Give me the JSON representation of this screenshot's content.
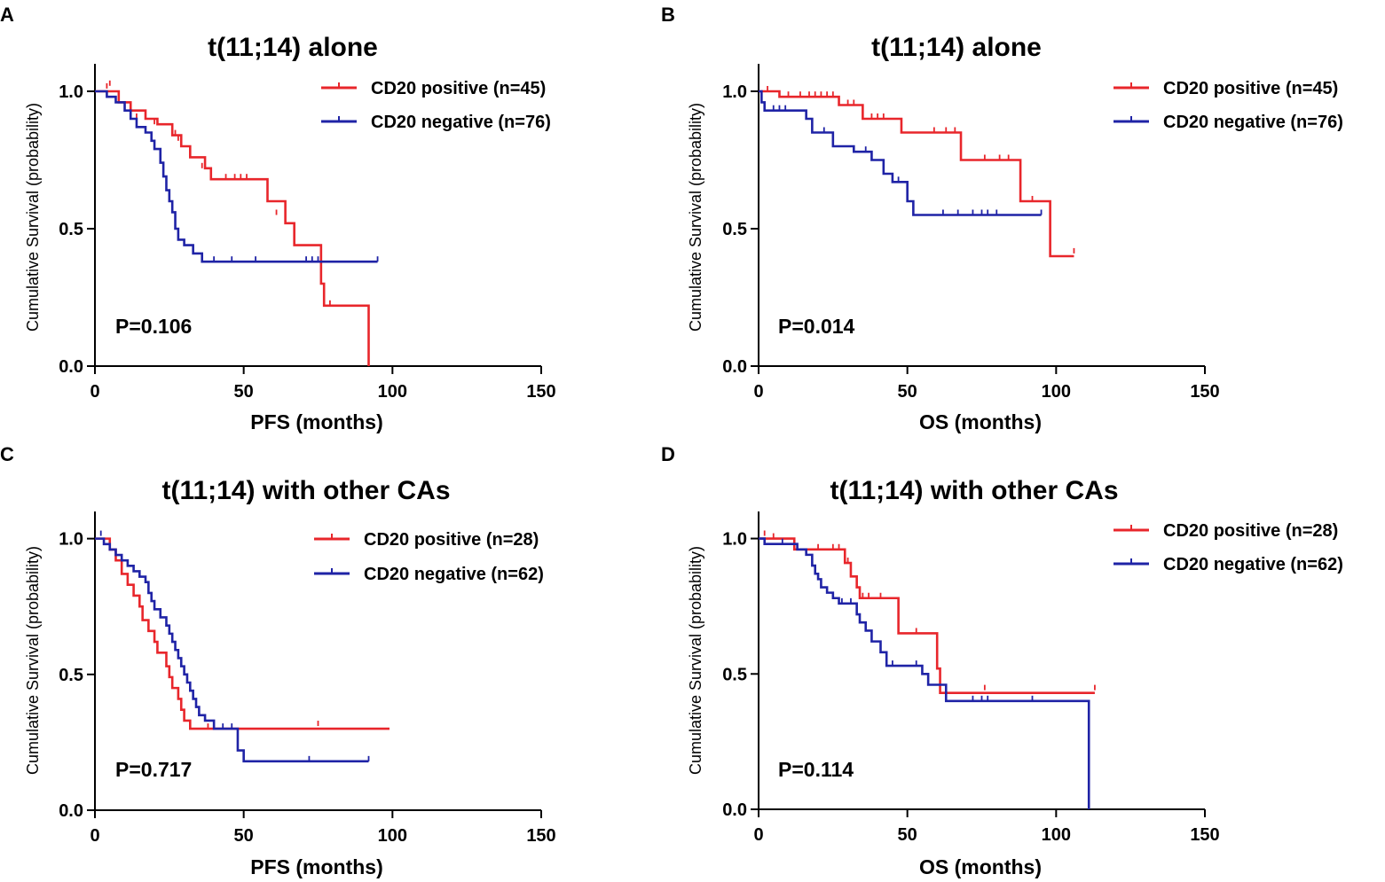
{
  "colors": {
    "positive": "#e8262b",
    "negative": "#1f23a6",
    "axis": "#000000"
  },
  "chart_data": [
    {
      "panel": "A",
      "type": "line",
      "subtype": "kaplan-meier",
      "title": "t(11;14) alone",
      "xlabel": "PFS (months)",
      "ylabel": "Cumulative Survival (probability)",
      "xlim": [
        0,
        150
      ],
      "ylim": [
        0,
        1.1
      ],
      "xticks": [
        "0",
        "50",
        "100",
        "150"
      ],
      "yticks": [
        "0.0",
        "0.5",
        "1.0"
      ],
      "p_value": "P=0.106",
      "legend_position": "top-right",
      "series": [
        {
          "name": "CD20 positive (n=45)",
          "color_key": "positive",
          "steps": [
            [
              0,
              1.0
            ],
            [
              8,
              0.96
            ],
            [
              12,
              0.93
            ],
            [
              17,
              0.9
            ],
            [
              21,
              0.88
            ],
            [
              26,
              0.84
            ],
            [
              29,
              0.8
            ],
            [
              32,
              0.76
            ],
            [
              37,
              0.72
            ],
            [
              39,
              0.68
            ],
            [
              58,
              0.6
            ],
            [
              64,
              0.52
            ],
            [
              67,
              0.44
            ],
            [
              76,
              0.3
            ],
            [
              77,
              0.22
            ],
            [
              92,
              0.0
            ]
          ],
          "end_x": 92,
          "censors": [
            [
              4,
              1.01
            ],
            [
              5,
              1.02
            ],
            [
              14,
              0.9
            ],
            [
              20,
              0.88
            ],
            [
              27,
              0.84
            ],
            [
              28,
              0.82
            ],
            [
              36,
              0.72
            ],
            [
              44,
              0.68
            ],
            [
              47,
              0.68
            ],
            [
              49,
              0.68
            ],
            [
              51,
              0.68
            ],
            [
              61,
              0.55
            ],
            [
              79,
              0.22
            ]
          ]
        },
        {
          "name": "CD20 negative (n=76)",
          "color_key": "negative",
          "steps": [
            [
              0,
              1.0
            ],
            [
              4,
              0.98
            ],
            [
              7,
              0.96
            ],
            [
              10,
              0.93
            ],
            [
              12,
              0.9
            ],
            [
              14,
              0.87
            ],
            [
              17,
              0.85
            ],
            [
              19,
              0.82
            ],
            [
              20,
              0.79
            ],
            [
              22,
              0.74
            ],
            [
              23,
              0.69
            ],
            [
              24,
              0.64
            ],
            [
              25,
              0.6
            ],
            [
              26,
              0.56
            ],
            [
              27,
              0.5
            ],
            [
              28,
              0.46
            ],
            [
              30,
              0.44
            ],
            [
              33,
              0.41
            ],
            [
              36,
              0.38
            ]
          ],
          "end_x": 95,
          "censors": [
            [
              40,
              0.38
            ],
            [
              46,
              0.38
            ],
            [
              54,
              0.38
            ],
            [
              71,
              0.38
            ],
            [
              73,
              0.38
            ],
            [
              75,
              0.38
            ],
            [
              95,
              0.38
            ]
          ]
        }
      ]
    },
    {
      "panel": "B",
      "type": "line",
      "subtype": "kaplan-meier",
      "title": "t(11;14) alone",
      "xlabel": "OS (months)",
      "ylabel": "Cumulative Survival (probability)",
      "xlim": [
        0,
        150
      ],
      "ylim": [
        0,
        1.1
      ],
      "xticks": [
        "0",
        "50",
        "100",
        "150"
      ],
      "yticks": [
        "0.0",
        "0.5",
        "1.0"
      ],
      "p_value": "P=0.014",
      "legend_position": "top-right",
      "series": [
        {
          "name": "CD20 positive (n=45)",
          "color_key": "positive",
          "steps": [
            [
              0,
              1.0
            ],
            [
              7,
              0.98
            ],
            [
              27,
              0.95
            ],
            [
              35,
              0.9
            ],
            [
              48,
              0.85
            ],
            [
              68,
              0.75
            ],
            [
              88,
              0.6
            ],
            [
              98,
              0.4
            ]
          ],
          "end_x": 106,
          "censors": [
            [
              3,
              1.0
            ],
            [
              10,
              0.98
            ],
            [
              14,
              0.98
            ],
            [
              17,
              0.98
            ],
            [
              19,
              0.98
            ],
            [
              21,
              0.98
            ],
            [
              23,
              0.98
            ],
            [
              25,
              0.98
            ],
            [
              30,
              0.95
            ],
            [
              32,
              0.95
            ],
            [
              38,
              0.9
            ],
            [
              40,
              0.9
            ],
            [
              42,
              0.9
            ],
            [
              59,
              0.85
            ],
            [
              63,
              0.85
            ],
            [
              66,
              0.85
            ],
            [
              76,
              0.75
            ],
            [
              81,
              0.75
            ],
            [
              84,
              0.75
            ],
            [
              92,
              0.6
            ],
            [
              106,
              0.41
            ]
          ]
        },
        {
          "name": "CD20 negative (n=76)",
          "color_key": "negative",
          "steps": [
            [
              0,
              1.0
            ],
            [
              1,
              0.96
            ],
            [
              2,
              0.93
            ],
            [
              16,
              0.9
            ],
            [
              18,
              0.85
            ],
            [
              25,
              0.8
            ],
            [
              32,
              0.78
            ],
            [
              38,
              0.75
            ],
            [
              42,
              0.7
            ],
            [
              45,
              0.67
            ],
            [
              50,
              0.6
            ],
            [
              52,
              0.55
            ]
          ],
          "end_x": 95,
          "censors": [
            [
              5,
              0.93
            ],
            [
              7,
              0.93
            ],
            [
              9,
              0.93
            ],
            [
              22,
              0.85
            ],
            [
              36,
              0.78
            ],
            [
              47,
              0.67
            ],
            [
              62,
              0.55
            ],
            [
              67,
              0.55
            ],
            [
              72,
              0.55
            ],
            [
              75,
              0.55
            ],
            [
              77,
              0.55
            ],
            [
              80,
              0.55
            ],
            [
              95,
              0.55
            ]
          ]
        }
      ]
    },
    {
      "panel": "C",
      "type": "line",
      "subtype": "kaplan-meier",
      "title": "t(11;14) with other CAs",
      "xlabel": "PFS (months)",
      "ylabel": "Cumulative Survival (probability)",
      "xlim": [
        0,
        150
      ],
      "ylim": [
        0,
        1.1
      ],
      "xticks": [
        "0",
        "50",
        "100",
        "150"
      ],
      "yticks": [
        "0.0",
        "0.5",
        "1.0"
      ],
      "p_value": "P=0.717",
      "legend_position": "top-right",
      "series": [
        {
          "name": "CD20 positive (n=28)",
          "color_key": "positive",
          "steps": [
            [
              0,
              1.0
            ],
            [
              5,
              0.96
            ],
            [
              7,
              0.92
            ],
            [
              9,
              0.87
            ],
            [
              11,
              0.83
            ],
            [
              13,
              0.79
            ],
            [
              15,
              0.75
            ],
            [
              16,
              0.7
            ],
            [
              18,
              0.66
            ],
            [
              20,
              0.62
            ],
            [
              21,
              0.58
            ],
            [
              24,
              0.53
            ],
            [
              25,
              0.49
            ],
            [
              26,
              0.45
            ],
            [
              28,
              0.41
            ],
            [
              29,
              0.37
            ],
            [
              30,
              0.33
            ],
            [
              32,
              0.3
            ]
          ],
          "end_x": 99,
          "censors": [
            [
              38,
              0.3
            ],
            [
              75,
              0.31
            ]
          ]
        },
        {
          "name": "CD20 negative (n=62)",
          "color_key": "negative",
          "steps": [
            [
              0,
              1.0
            ],
            [
              3,
              0.98
            ],
            [
              5,
              0.96
            ],
            [
              7,
              0.94
            ],
            [
              9,
              0.92
            ],
            [
              11,
              0.9
            ],
            [
              13,
              0.88
            ],
            [
              15,
              0.86
            ],
            [
              17,
              0.84
            ],
            [
              18,
              0.8
            ],
            [
              19,
              0.77
            ],
            [
              20,
              0.74
            ],
            [
              22,
              0.71
            ],
            [
              24,
              0.68
            ],
            [
              25,
              0.65
            ],
            [
              26,
              0.62
            ],
            [
              27,
              0.59
            ],
            [
              28,
              0.56
            ],
            [
              29,
              0.53
            ],
            [
              30,
              0.5
            ],
            [
              31,
              0.47
            ],
            [
              32,
              0.44
            ],
            [
              33,
              0.41
            ],
            [
              34,
              0.38
            ],
            [
              35,
              0.35
            ],
            [
              37,
              0.33
            ],
            [
              40,
              0.3
            ],
            [
              48,
              0.22
            ],
            [
              50,
              0.18
            ]
          ],
          "end_x": 92,
          "censors": [
            [
              2,
              1.01
            ],
            [
              43,
              0.3
            ],
            [
              46,
              0.3
            ],
            [
              72,
              0.18
            ],
            [
              92,
              0.18
            ]
          ]
        }
      ]
    },
    {
      "panel": "D",
      "type": "line",
      "subtype": "kaplan-meier",
      "title": "t(11;14) with other CAs",
      "xlabel": "OS (months)",
      "ylabel": "Cumulative Survival (probability)",
      "xlim": [
        0,
        150
      ],
      "ylim": [
        0,
        1.1
      ],
      "xticks": [
        "0",
        "50",
        "100",
        "150"
      ],
      "yticks": [
        "0.0",
        "0.5",
        "1.0"
      ],
      "p_value": "P=0.114",
      "legend_position": "top-right",
      "series": [
        {
          "name": "CD20 positive (n=28)",
          "color_key": "positive",
          "steps": [
            [
              0,
              1.0
            ],
            [
              12,
              0.96
            ],
            [
              29,
              0.91
            ],
            [
              31,
              0.86
            ],
            [
              33,
              0.82
            ],
            [
              34,
              0.78
            ],
            [
              47,
              0.65
            ],
            [
              60,
              0.52
            ],
            [
              61,
              0.43
            ]
          ],
          "end_x": 113,
          "censors": [
            [
              2,
              1.01
            ],
            [
              5,
              1.0
            ],
            [
              20,
              0.96
            ],
            [
              25,
              0.96
            ],
            [
              27,
              0.96
            ],
            [
              30,
              0.91
            ],
            [
              35,
              0.78
            ],
            [
              37,
              0.78
            ],
            [
              41,
              0.78
            ],
            [
              53,
              0.65
            ],
            [
              76,
              0.44
            ],
            [
              113,
              0.44
            ]
          ]
        },
        {
          "name": "CD20 negative (n=62)",
          "color_key": "negative",
          "steps": [
            [
              0,
              1.0
            ],
            [
              2,
              0.98
            ],
            [
              13,
              0.96
            ],
            [
              16,
              0.94
            ],
            [
              18,
              0.9
            ],
            [
              19,
              0.87
            ],
            [
              20,
              0.85
            ],
            [
              21,
              0.82
            ],
            [
              23,
              0.8
            ],
            [
              25,
              0.78
            ],
            [
              27,
              0.76
            ],
            [
              33,
              0.72
            ],
            [
              34,
              0.69
            ],
            [
              36,
              0.66
            ],
            [
              38,
              0.62
            ],
            [
              41,
              0.58
            ],
            [
              43,
              0.53
            ],
            [
              55,
              0.5
            ],
            [
              57,
              0.46
            ],
            [
              63,
              0.4
            ]
          ],
          "end_x": 111,
          "vertical_drop_to": 0.0,
          "censors": [
            [
              8,
              0.98
            ],
            [
              25,
              0.78
            ],
            [
              28,
              0.76
            ],
            [
              31,
              0.76
            ],
            [
              45,
              0.53
            ],
            [
              53,
              0.53
            ],
            [
              72,
              0.4
            ],
            [
              75,
              0.4
            ],
            [
              77,
              0.4
            ],
            [
              92,
              0.4
            ]
          ]
        }
      ]
    }
  ]
}
